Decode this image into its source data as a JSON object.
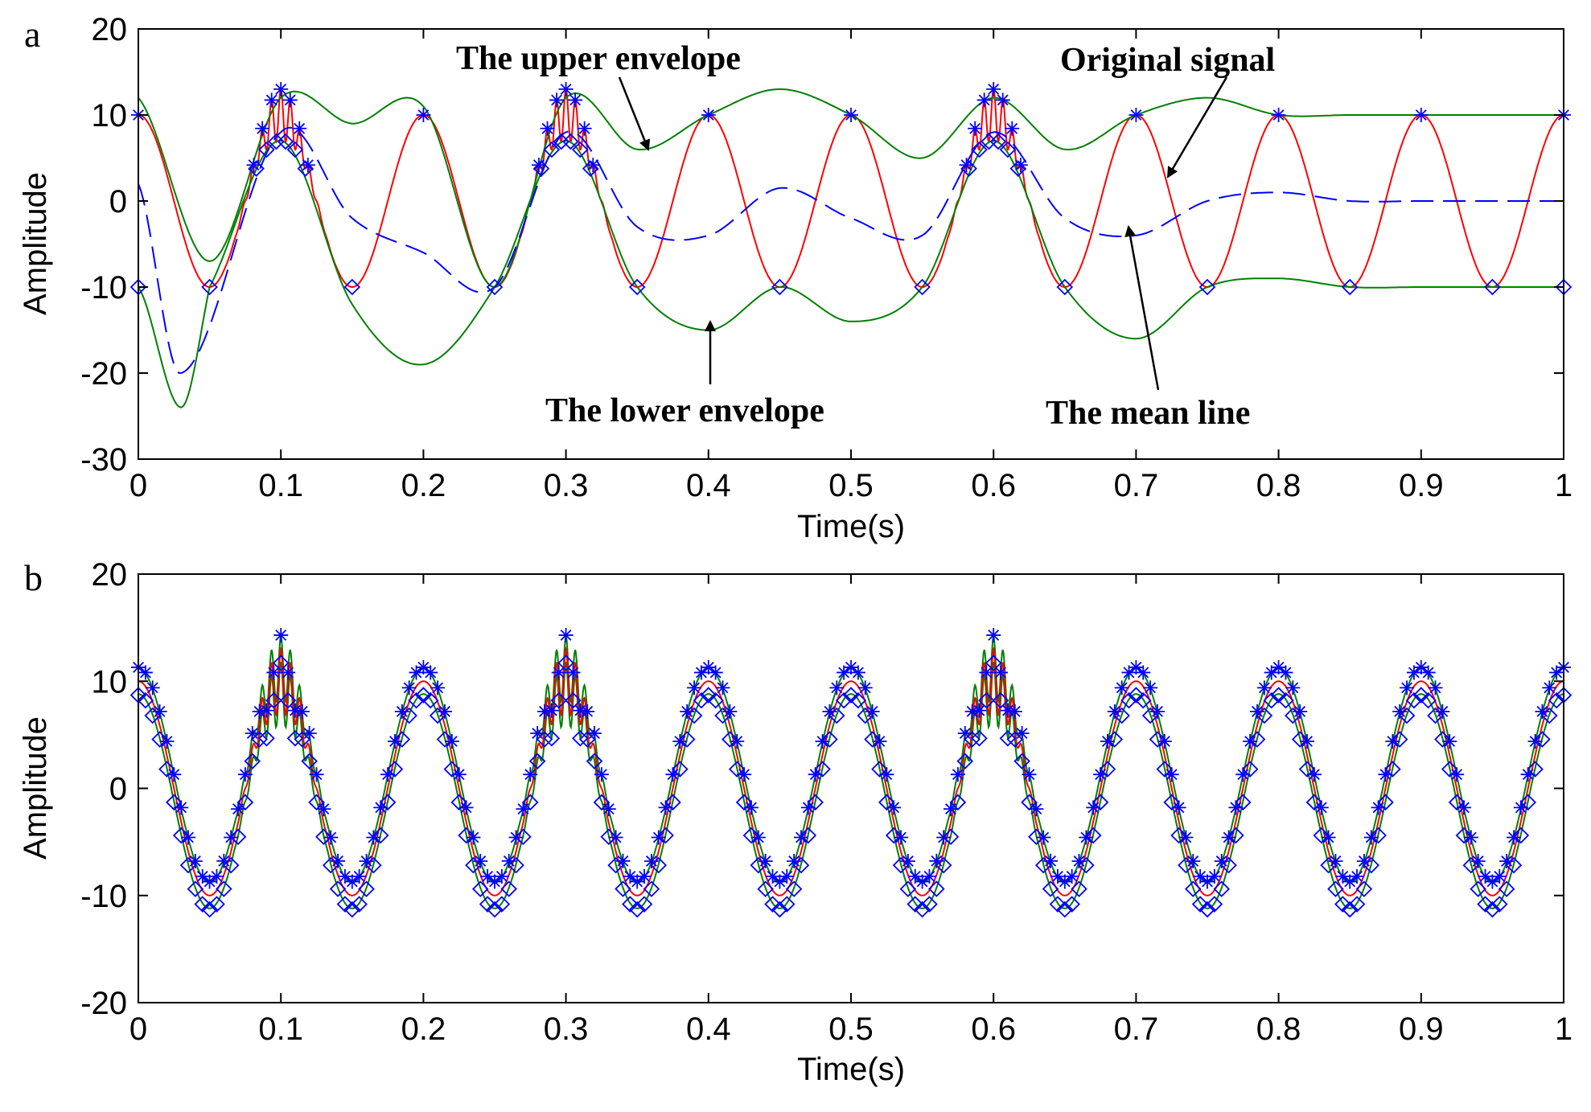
{
  "chart_data": [
    {
      "panel_label": "a",
      "type": "line",
      "xlabel": "Time(s)",
      "ylabel": "Amplitude",
      "xlim": [
        0,
        1
      ],
      "ylim": [
        -30,
        20
      ],
      "xticks": [
        "0",
        "0.1",
        "0.2",
        "0.3",
        "0.4",
        "0.5",
        "0.6",
        "0.7",
        "0.8",
        "0.9",
        "1"
      ],
      "yticks": [
        "20",
        "10",
        "0",
        "-10",
        "-20",
        "-30"
      ],
      "grid": false,
      "annotations": {
        "upper": "The upper envelope",
        "original": "Original signal",
        "lower": "The lower envelope",
        "mean": "The mean line"
      },
      "series": [
        {
          "name": "Original signal",
          "color": "#ff0000",
          "description": "10*cos(2*pi*10*t) with bursts near 0.1, 0.3, 0.6 s"
        },
        {
          "name": "The upper envelope",
          "color": "#008000",
          "x": [
            0,
            0.05,
            0.1,
            0.15,
            0.2,
            0.25,
            0.3,
            0.35,
            0.4,
            0.45,
            0.5,
            0.55,
            0.6,
            0.65,
            0.7,
            0.75,
            0.8,
            0.85,
            0.9,
            0.95,
            1.0
          ],
          "y": [
            12,
            -7,
            12,
            9,
            11,
            -10,
            12,
            6,
            10,
            13,
            10,
            5,
            12,
            6,
            10,
            12,
            10,
            10,
            10,
            10,
            10
          ]
        },
        {
          "name": "The lower envelope",
          "color": "#008000",
          "x": [
            0,
            0.03,
            0.05,
            0.1,
            0.15,
            0.2,
            0.25,
            0.3,
            0.35,
            0.4,
            0.45,
            0.5,
            0.55,
            0.6,
            0.65,
            0.7,
            0.75,
            0.8,
            0.85,
            0.9,
            0.95,
            1.0
          ],
          "y": [
            -10,
            -24,
            -10,
            7,
            -12,
            -19,
            -10,
            7,
            -10,
            -15,
            -10,
            -14,
            -10,
            7,
            -10,
            -16,
            -10,
            -9,
            -10,
            -10,
            -10,
            -10
          ]
        },
        {
          "name": "The mean line",
          "color": "#0000ff",
          "x": [
            0,
            0.03,
            0.1,
            0.15,
            0.2,
            0.25,
            0.3,
            0.35,
            0.4,
            0.45,
            0.5,
            0.55,
            0.6,
            0.65,
            0.7,
            0.75,
            0.8,
            0.85,
            0.9,
            0.95,
            1.0
          ],
          "y": [
            2,
            -20,
            8,
            -2,
            -6,
            -10,
            8,
            -3,
            -4,
            1.5,
            -2,
            -4,
            8,
            -2,
            -4,
            0,
            1,
            0,
            0,
            0,
            0
          ]
        }
      ]
    },
    {
      "panel_label": "b",
      "type": "line",
      "xlabel": "Time(s)",
      "ylabel": "Amplitude",
      "xlim": [
        0,
        1
      ],
      "ylim": [
        -20,
        20
      ],
      "xticks": [
        "0",
        "0.1",
        "0.2",
        "0.3",
        "0.4",
        "0.5",
        "0.6",
        "0.7",
        "0.8",
        "0.9",
        "1"
      ],
      "yticks": [
        "20",
        "10",
        "0",
        "-10",
        "-20"
      ],
      "grid": false,
      "series": [
        {
          "name": "Signal",
          "color": "#ff0000",
          "description": "10*cos(2*pi*10*t) with bursts near 0.1, 0.3, 0.6 s"
        },
        {
          "name": "Upper envelope",
          "color": "#008000"
        },
        {
          "name": "Lower envelope",
          "color": "#008000"
        },
        {
          "name": "Maxima markers (*)",
          "color": "#0000ff"
        },
        {
          "name": "Minima markers (diamond)",
          "color": "#0000ff"
        }
      ]
    }
  ]
}
